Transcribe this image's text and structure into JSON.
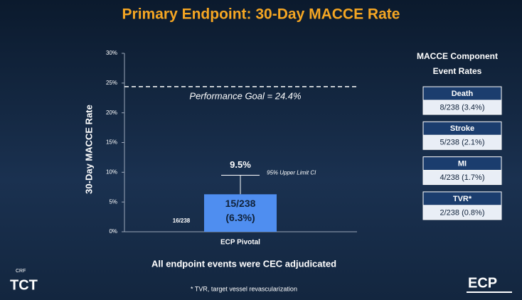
{
  "chart_data": {
    "type": "bar",
    "title": "Primary Endpoint: 30-Day MACCE Rate",
    "ylabel": "30-Day MACCE Rate",
    "categories": [
      "ECP Pivotal"
    ],
    "values": [
      6.3
    ],
    "value_labels": [
      "(6.3%)"
    ],
    "color": "#4f8ef0",
    "upper_ci": [
      9.5
    ],
    "upper_ci_labels": [
      "9.5%"
    ],
    "upper_ci_note": "95% Upper Limit CI",
    "count_labels": [
      "15/238"
    ],
    "side_note": "16/238",
    "reference_line": {
      "value": 24.4,
      "label": "Performance Goal = 24.4%"
    },
    "ylim": [
      0,
      30
    ],
    "yticks": [
      {
        "value": 0,
        "label": "0%"
      },
      {
        "value": 5,
        "label": "5%"
      },
      {
        "value": 10,
        "label": "10%"
      },
      {
        "value": 15,
        "label": "15%"
      },
      {
        "value": 20,
        "label": "20%"
      },
      {
        "value": 25,
        "label": "25%"
      },
      {
        "value": 30,
        "label": "30%"
      }
    ],
    "footer": "All endpoint events were CEC adjudicated"
  },
  "side_panel": {
    "title": [
      "MACCE Component",
      "Event Rates"
    ],
    "items": [
      {
        "name": "Death",
        "value": "8/238 (3.4%)"
      },
      {
        "name": "Stroke",
        "value": "5/238 (2.1%)"
      },
      {
        "name": "MI",
        "value": "4/238 (1.7%)"
      },
      {
        "name": "TVR*",
        "value": "2/238 (0.8%)"
      }
    ]
  },
  "footnote": "* TVR, target vessel revascularization",
  "logos": {
    "left_small": "CRF",
    "left": "TCT",
    "right": "ECP"
  }
}
